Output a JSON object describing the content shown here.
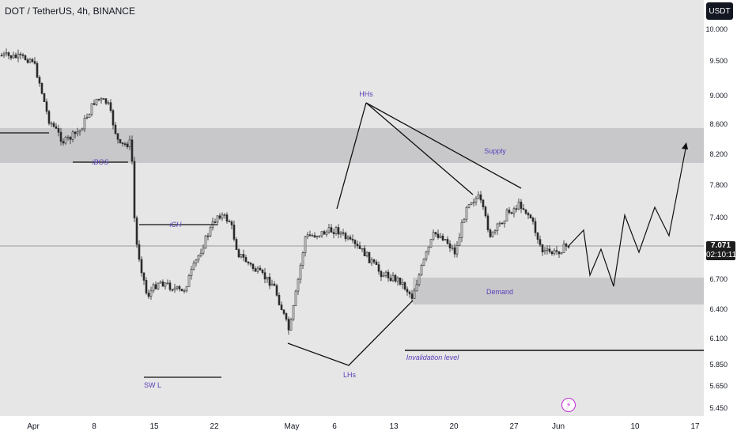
{
  "symbol": {
    "title": "DOT / TetherUS, 4h, BINANCE"
  },
  "price_axis": {
    "currency": "USDT",
    "labels": [
      "10.000",
      "9.500",
      "9.000",
      "8.600",
      "8.200",
      "7.800",
      "7.400",
      "6.700",
      "6.400",
      "6.100",
      "5.850",
      "5.650",
      "5.450"
    ],
    "current_price": "7.071",
    "countdown": "02:10:11"
  },
  "time_axis": {
    "labels": [
      "Apr",
      "8",
      "15",
      "22",
      "May",
      "6",
      "13",
      "20",
      "27",
      "Jun",
      "10",
      "17"
    ]
  },
  "annotations": {
    "hhs": "HHs",
    "lhs": "LHs",
    "ibos": "iBOS",
    "ich": "iCH",
    "swl": "SW L",
    "supply": "Supply",
    "demand": "Demand",
    "invalidation": "Invalidation level"
  },
  "colors": {
    "background": "#e6e6e6",
    "zone": "#c8c8cb",
    "candles": "#2a2a2a",
    "annotation_text": "#5b3fb8",
    "flash": "#c12bd6"
  },
  "icons": {
    "flash": "lightning-icon"
  }
}
